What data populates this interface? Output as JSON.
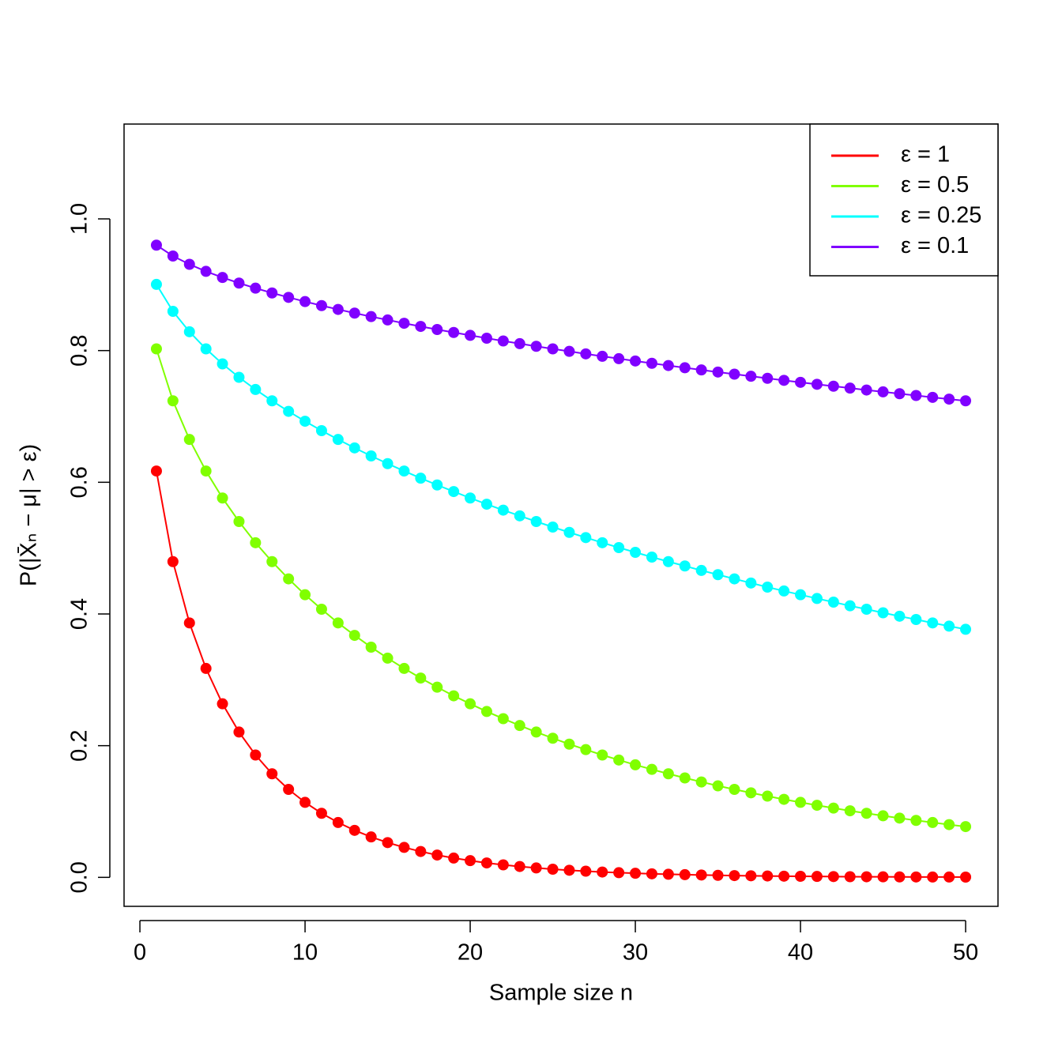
{
  "chart_data": {
    "type": "line",
    "xlabel": "Sample size n",
    "ylabel": "P(|X̄ₙ − μ| > ε)",
    "x": [
      1,
      2,
      3,
      4,
      5,
      6,
      7,
      8,
      9,
      10,
      11,
      12,
      13,
      14,
      15,
      16,
      17,
      18,
      19,
      20,
      21,
      22,
      23,
      24,
      25,
      26,
      27,
      28,
      29,
      30,
      31,
      32,
      33,
      34,
      35,
      36,
      37,
      38,
      39,
      40,
      41,
      42,
      43,
      44,
      45,
      46,
      47,
      48,
      49,
      50
    ],
    "series": [
      {
        "name": "ε = 1",
        "color": "#ff0000",
        "values": [
          0.6171,
          0.4795,
          0.3864,
          0.3173,
          0.2636,
          0.2207,
          0.1858,
          0.1573,
          0.1336,
          0.1139,
          0.0973,
          0.0833,
          0.0714,
          0.0614,
          0.0528,
          0.0455,
          0.0393,
          0.0339,
          0.0293,
          0.0254,
          0.0219,
          0.019,
          0.0165,
          0.0143,
          0.0124,
          0.0108,
          0.0094,
          0.0081,
          0.0071,
          0.0062,
          0.0054,
          0.0047,
          0.0041,
          0.0036,
          0.0031,
          0.0027,
          0.0024,
          0.0021,
          0.0018,
          0.0016,
          0.0014,
          0.0012,
          0.001,
          0.0009,
          0.0008,
          0.0007,
          0.0006,
          0.0005,
          0.0005,
          0.0004
        ]
      },
      {
        "name": "ε = 0.5",
        "color": "#80ff00",
        "values": [
          0.8026,
          0.7237,
          0.665,
          0.6171,
          0.5761,
          0.5404,
          0.5082,
          0.4795,
          0.4533,
          0.4292,
          0.4072,
          0.3864,
          0.3675,
          0.3496,
          0.3329,
          0.3173,
          0.3027,
          0.2888,
          0.2757,
          0.2636,
          0.2519,
          0.241,
          0.2306,
          0.2207,
          0.2113,
          0.2023,
          0.194,
          0.1858,
          0.1782,
          0.1709,
          0.164,
          0.1573,
          0.151,
          0.1449,
          0.139,
          0.1336,
          0.1284,
          0.1234,
          0.1185,
          0.1139,
          0.1095,
          0.1052,
          0.1011,
          0.0973,
          0.0935,
          0.09,
          0.0865,
          0.0833,
          0.0801,
          0.0771
        ]
      },
      {
        "name": "ε = 0.25",
        "color": "#00ffff",
        "values": [
          0.9005,
          0.8596,
          0.8286,
          0.8026,
          0.7798,
          0.7594,
          0.7409,
          0.7237,
          0.7077,
          0.6927,
          0.6784,
          0.665,
          0.6522,
          0.64,
          0.6283,
          0.6171,
          0.6062,
          0.5959,
          0.5859,
          0.5761,
          0.5667,
          0.5577,
          0.549,
          0.5404,
          0.532,
          0.5239,
          0.516,
          0.5082,
          0.5008,
          0.4936,
          0.4864,
          0.4795,
          0.4729,
          0.4661,
          0.4597,
          0.4533,
          0.447,
          0.4408,
          0.4349,
          0.4292,
          0.4235,
          0.418,
          0.4124,
          0.4072,
          0.4018,
          0.3966,
          0.3916,
          0.3864,
          0.3815,
          0.3767
        ]
      },
      {
        "name": "ε = 0.1",
        "color": "#8000ff",
        "values": [
          0.9601,
          0.9436,
          0.931,
          0.9203,
          0.911,
          0.9025,
          0.8948,
          0.8875,
          0.8808,
          0.8744,
          0.8683,
          0.8625,
          0.8569,
          0.8516,
          0.8465,
          0.8415,
          0.8367,
          0.832,
          0.8275,
          0.8231,
          0.8188,
          0.8146,
          0.8105,
          0.8065,
          0.8026,
          0.7988,
          0.795,
          0.7913,
          0.7877,
          0.7842,
          0.7807,
          0.7773,
          0.7739,
          0.7706,
          0.7674,
          0.7642,
          0.761,
          0.7579,
          0.7548,
          0.7518,
          0.7488,
          0.7459,
          0.743,
          0.7401,
          0.7373,
          0.7345,
          0.7318,
          0.729,
          0.7263,
          0.7237
        ]
      }
    ],
    "xlim": [
      -0.96,
      51.96
    ],
    "xticks": [
      0,
      10,
      20,
      30,
      40,
      50
    ],
    "ylim": [
      -0.044,
      1.144
    ],
    "yticks": [
      {
        "value": 0,
        "label": "0.0"
      },
      0.2,
      0.4,
      0.6,
      0.8,
      {
        "value": 1,
        "label": "1.0"
      }
    ],
    "markers": true,
    "legend": "top right"
  }
}
